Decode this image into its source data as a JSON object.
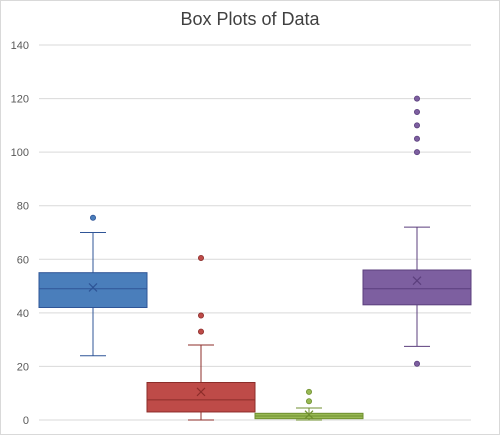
{
  "chart_data": {
    "type": "boxplot",
    "title": "Box Plots of Data",
    "xlabel": "",
    "ylabel": "",
    "ylim": [
      0,
      140
    ],
    "yticks": [
      0,
      20,
      40,
      60,
      80,
      100,
      120,
      140
    ],
    "grid": true,
    "legend": "none",
    "series": [
      {
        "color": "#4a7ebb",
        "stroke": "#2f5597",
        "min": 24,
        "q1": 42,
        "median": 49,
        "mean": 49.5,
        "q3": 55,
        "max": 70,
        "outliers": [
          75.5
        ]
      },
      {
        "color": "#be4b48",
        "stroke": "#8c2d2a",
        "min": 0,
        "q1": 3,
        "median": 7.5,
        "mean": 10.5,
        "q3": 14,
        "max": 28,
        "outliers": [
          33,
          39,
          60.5
        ]
      },
      {
        "color": "#98b954",
        "stroke": "#6f8f2f",
        "min": 0,
        "q1": 0.5,
        "median": 1.5,
        "mean": 2,
        "q3": 2.5,
        "max": 4.5,
        "outliers": [
          7,
          10.5
        ]
      },
      {
        "color": "#7d5fa0",
        "stroke": "#5b3f7d",
        "min": 27.5,
        "q1": 43,
        "median": 49,
        "mean": 52,
        "q3": 56,
        "max": 72,
        "outliers": [
          21,
          100,
          105,
          110,
          115,
          120
        ]
      }
    ]
  }
}
